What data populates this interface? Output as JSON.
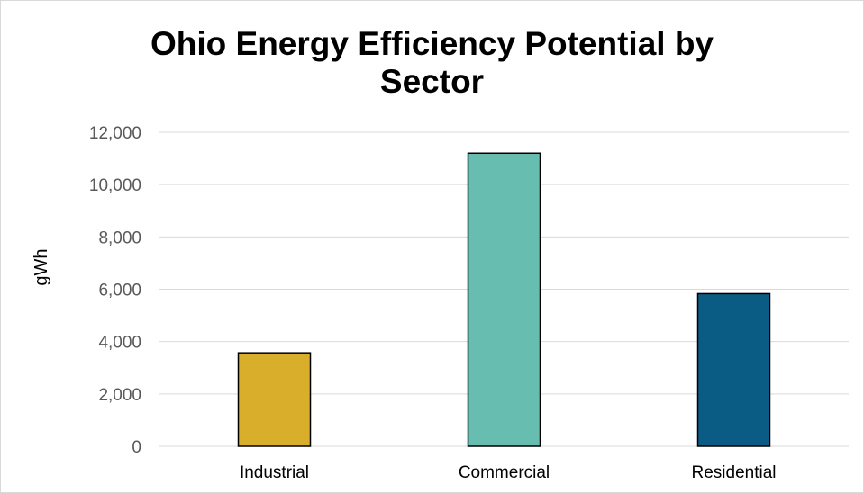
{
  "chart_data": {
    "type": "bar",
    "title_lines": [
      "Ohio Energy Efficiency Potential by",
      "Sector"
    ],
    "xlabel": "",
    "ylabel": "gWh",
    "categories": [
      "Industrial",
      "Commercial",
      "Residential"
    ],
    "values": [
      3570,
      11200,
      5830
    ],
    "bar_colors": [
      "#D9AE2B",
      "#66BDB0",
      "#0B5C84"
    ],
    "ylim": [
      0,
      12000
    ],
    "yticks": [
      0,
      2000,
      4000,
      6000,
      8000,
      10000,
      12000
    ],
    "ytick_labels": [
      "0",
      "2,000",
      "4,000",
      "6,000",
      "8,000",
      "10,000",
      "12,000"
    ],
    "grid": true,
    "legend": "none",
    "gridline_color": "#d9d9d9",
    "bar_outline_color": "#000000"
  }
}
